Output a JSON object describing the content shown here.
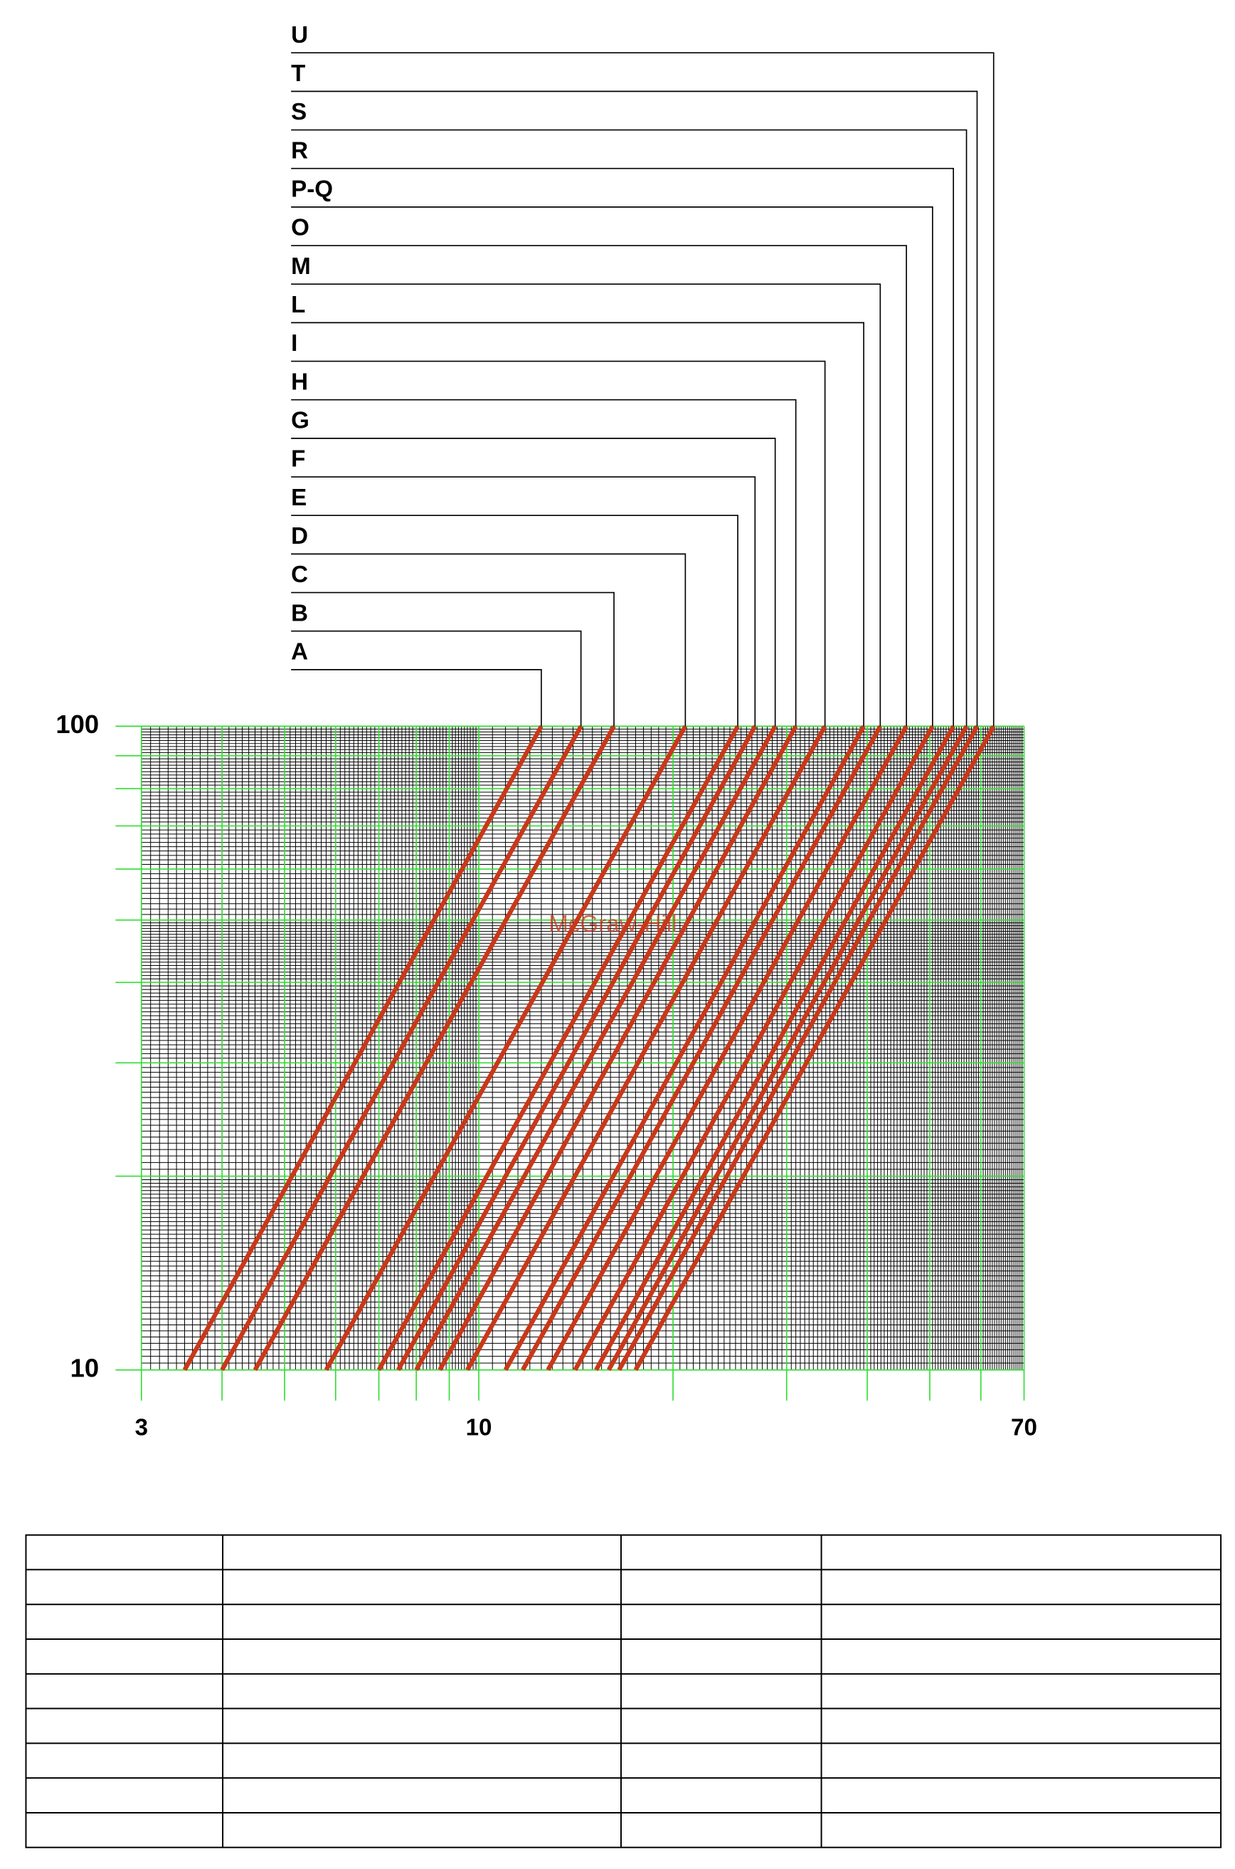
{
  "chart_data": {
    "type": "line",
    "watermark": "McGraw-Hill",
    "xscale": "log",
    "yscale": "log",
    "xlim": [
      3,
      70
    ],
    "ylim": [
      10,
      100
    ],
    "xticks": [
      3,
      10,
      70
    ],
    "yticks": [
      10,
      100
    ],
    "xgrid": [
      3,
      4,
      5,
      6,
      7,
      8,
      9,
      10,
      20,
      30,
      40,
      50,
      60,
      70
    ],
    "ygrid": [
      10,
      20,
      30,
      40,
      50,
      60,
      70,
      80,
      90,
      100
    ],
    "grid": true,
    "series": [
      {
        "name": "A",
        "color": "#c8381a",
        "x": [
          3.5,
          12.5
        ],
        "values": [
          10,
          100
        ]
      },
      {
        "name": "B",
        "color": "#c8381a",
        "x": [
          4.0,
          14.4
        ],
        "values": [
          10,
          100
        ]
      },
      {
        "name": "C",
        "color": "#c8381a",
        "x": [
          4.5,
          16.2
        ],
        "values": [
          10,
          100
        ]
      },
      {
        "name": "D",
        "color": "#c8381a",
        "x": [
          5.8,
          20.9
        ],
        "values": [
          10,
          100
        ]
      },
      {
        "name": "E",
        "color": "#c8381a",
        "x": [
          7.0,
          25.2
        ],
        "values": [
          10,
          100
        ]
      },
      {
        "name": "F",
        "color": "#c8381a",
        "x": [
          7.5,
          26.8
        ],
        "values": [
          10,
          100
        ]
      },
      {
        "name": "G",
        "color": "#c8381a",
        "x": [
          8.0,
          28.8
        ],
        "values": [
          10,
          100
        ]
      },
      {
        "name": "H",
        "color": "#c8381a",
        "x": [
          8.7,
          31.0
        ],
        "values": [
          10,
          100
        ]
      },
      {
        "name": "I",
        "color": "#c8381a",
        "x": [
          9.6,
          34.4
        ],
        "values": [
          10,
          100
        ]
      },
      {
        "name": "L",
        "color": "#c8381a",
        "x": [
          11.0,
          39.5
        ],
        "values": [
          10,
          100
        ]
      },
      {
        "name": "M",
        "color": "#c8381a",
        "x": [
          11.7,
          41.9
        ],
        "values": [
          10,
          100
        ]
      },
      {
        "name": "O",
        "color": "#c8381a",
        "x": [
          12.8,
          46.0
        ],
        "values": [
          10,
          100
        ]
      },
      {
        "name": "P-Q",
        "color": "#c8381a",
        "x": [
          14.1,
          50.5
        ],
        "values": [
          10,
          100
        ]
      },
      {
        "name": "R",
        "color": "#c8381a",
        "x": [
          15.2,
          54.4
        ],
        "values": [
          10,
          100
        ]
      },
      {
        "name": "S",
        "color": "#c8381a",
        "x": [
          15.9,
          57.0
        ],
        "values": [
          10,
          100
        ]
      },
      {
        "name": "T",
        "color": "#c8381a",
        "x": [
          16.5,
          59.2
        ],
        "values": [
          10,
          100
        ]
      },
      {
        "name": "U",
        "color": "#c8381a",
        "x": [
          17.5,
          62.8
        ],
        "values": [
          10,
          100
        ]
      }
    ]
  }
}
